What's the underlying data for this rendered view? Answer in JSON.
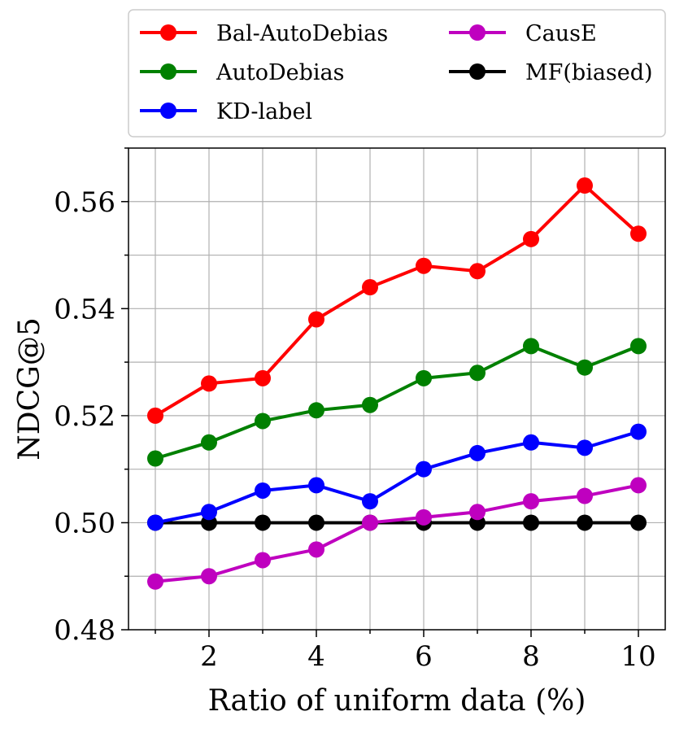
{
  "chart_data": {
    "type": "line",
    "title": "",
    "xlabel": "Ratio of uniform data (%)",
    "ylabel": "NDCG@5",
    "x": [
      1,
      2,
      3,
      4,
      5,
      6,
      7,
      8,
      9,
      10
    ],
    "xlim": [
      0.5,
      10.5
    ],
    "ylim": [
      0.48,
      0.57
    ],
    "xticks": [
      2,
      4,
      6,
      8,
      10
    ],
    "xtick_labels": [
      "2",
      "4",
      "6",
      "8",
      "10"
    ],
    "yticks": [
      0.48,
      0.5,
      0.52,
      0.54,
      0.56
    ],
    "ytick_labels": [
      "0.48",
      "0.50",
      "0.52",
      "0.54",
      "0.56"
    ],
    "grid": true,
    "legend_position": "top",
    "series": [
      {
        "name": "Bal-AutoDebias",
        "color": "#ff0000",
        "values": [
          0.52,
          0.526,
          0.527,
          0.538,
          0.544,
          0.548,
          0.547,
          0.553,
          0.563,
          0.554
        ]
      },
      {
        "name": "AutoDebias",
        "color": "#008000",
        "values": [
          0.512,
          0.515,
          0.519,
          0.521,
          0.522,
          0.527,
          0.528,
          0.533,
          0.529,
          0.533
        ]
      },
      {
        "name": "KD-label",
        "color": "#0000ff",
        "values": [
          0.5,
          0.502,
          0.506,
          0.507,
          0.504,
          0.51,
          0.513,
          0.515,
          0.514,
          0.517
        ]
      },
      {
        "name": "CausE",
        "color": "#bf00bf",
        "values": [
          0.489,
          0.49,
          0.493,
          0.495,
          0.5,
          0.501,
          0.502,
          0.504,
          0.505,
          0.507
        ]
      },
      {
        "name": "MF(biased)",
        "color": "#000000",
        "values": [
          0.5,
          0.5,
          0.5,
          0.5,
          0.5,
          0.5,
          0.5,
          0.5,
          0.5,
          0.5
        ]
      }
    ]
  }
}
